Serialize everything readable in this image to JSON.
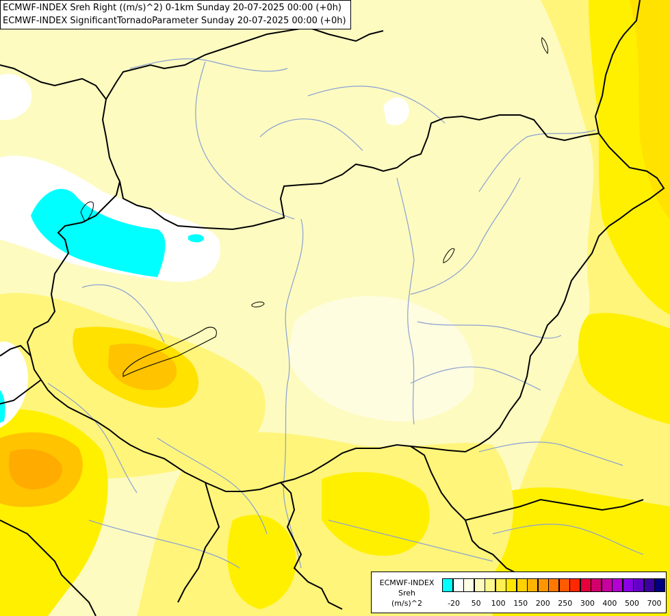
{
  "title_lines": [
    "ECMWF-INDEX Sreh Right ((m/s)^2) 0-1km Sunday 20-07-2025 00:00 (+0h)",
    "ECMWF-INDEX SignificantTornadoParameter Sunday 20-07-2025 00:00 (+0h)"
  ],
  "legend": {
    "title_lines": [
      "ECMWF-INDEX",
      "Sreh",
      "(m/s)^2"
    ],
    "swatches": [
      "#00ffff",
      "#ffffff",
      "#ffffe6",
      "#fffbbe",
      "#fff88c",
      "#fff050",
      "#ffe600",
      "#ffd200",
      "#ffb400",
      "#ff9600",
      "#ff7800",
      "#ff5a00",
      "#ff2800",
      "#e6003c",
      "#d2006e",
      "#c800a0",
      "#b400d2",
      "#8c00e6",
      "#6400c8",
      "#3c00a0",
      "#000080"
    ],
    "ticks": [
      "-20",
      "50",
      "100",
      "150",
      "200",
      "250",
      "300",
      "400",
      "500",
      "700"
    ]
  },
  "colors": {
    "base": "#fdfbc0",
    "pale": "#fffde0",
    "light_yellow": "#fff57a",
    "yellow": "#fff000",
    "gold": "#ffe200",
    "orange": "#ffc300",
    "deep_orange": "#ffab00",
    "cyan": "#00ffff",
    "white": "#ffffff",
    "border": "#000000",
    "river": "#8aa0d2"
  }
}
